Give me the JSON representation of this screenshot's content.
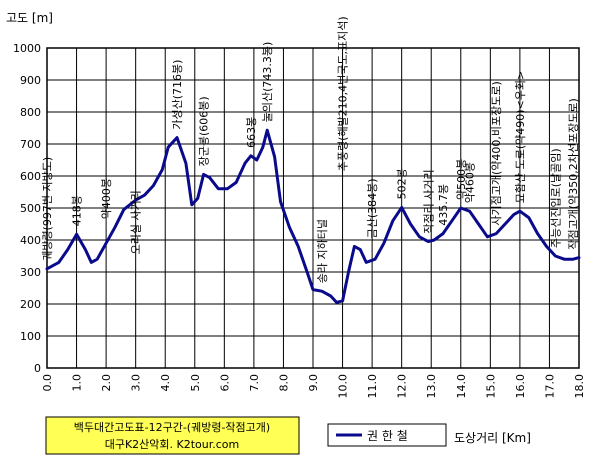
{
  "chart_data": {
    "type": "line",
    "title": "백두대간고도표-12구간-(궤방령-작점고개)",
    "subtitle": "대구K2산악회. K2tour.com",
    "ylabel": "고도 [m]",
    "xlabel": "도상거리 [Km]",
    "xlim": [
      0,
      18
    ],
    "ylim": [
      0,
      1000
    ],
    "x_ticks": [
      0,
      1,
      2,
      3,
      4,
      5,
      6,
      7,
      8,
      9,
      10,
      11,
      12,
      13,
      14,
      15,
      16,
      17,
      18
    ],
    "x_tick_labels": [
      "0.0",
      "1.0",
      "2.0",
      "3.0",
      "4.0",
      "5.0",
      "6.0",
      "7.0",
      "8.0",
      "9.0",
      "10.0",
      "11.0",
      "12.0",
      "13.0",
      "14.0",
      "15.0",
      "16.0",
      "17.0",
      "18.0"
    ],
    "y_ticks": [
      0,
      100,
      200,
      300,
      400,
      500,
      600,
      700,
      800,
      900,
      1000
    ],
    "y_tick_labels": [
      "0",
      "100",
      "200",
      "300",
      "400",
      "500",
      "600",
      "700",
      "800",
      "900",
      "1000"
    ],
    "grid": true,
    "legend_position": "bottom-center",
    "colors": {
      "line": "#0a0a8c",
      "grid": "#000000",
      "caption_bg": "#ffff55"
    },
    "series": [
      {
        "name": "권 한 철",
        "x": [
          0.0,
          0.4,
          0.7,
          1.0,
          1.3,
          1.5,
          1.7,
          2.0,
          2.3,
          2.6,
          3.0,
          3.3,
          3.6,
          3.9,
          4.1,
          4.4,
          4.7,
          4.9,
          5.1,
          5.3,
          5.5,
          5.8,
          6.1,
          6.4,
          6.7,
          6.9,
          7.1,
          7.3,
          7.45,
          7.7,
          7.9,
          8.2,
          8.5,
          8.8,
          9.0,
          9.3,
          9.6,
          9.8,
          10.0,
          10.2,
          10.4,
          10.6,
          10.8,
          11.1,
          11.4,
          11.7,
          12.0,
          12.3,
          12.6,
          12.9,
          13.1,
          13.4,
          13.7,
          14.0,
          14.3,
          14.6,
          14.9,
          15.2,
          15.5,
          15.8,
          16.0,
          16.3,
          16.6,
          16.9,
          17.2,
          17.5,
          17.8,
          18.0
        ],
        "y": [
          310,
          330,
          370,
          418,
          370,
          330,
          340,
          390,
          440,
          495,
          525,
          540,
          570,
          620,
          690,
          720,
          640,
          510,
          530,
          605,
          595,
          560,
          560,
          580,
          640,
          663,
          650,
          690,
          743,
          660,
          520,
          440,
          380,
          300,
          245,
          240,
          225,
          205,
          210,
          300,
          380,
          370,
          330,
          340,
          390,
          460,
          502,
          450,
          410,
          395,
          400,
          420,
          460,
          500,
          490,
          450,
          410,
          420,
          450,
          480,
          490,
          470,
          420,
          380,
          350,
          340,
          340,
          345
        ]
      }
    ],
    "annotations": [
      {
        "x": 0.0,
        "y": 310,
        "text": "궤방령(997번 지방도)"
      },
      {
        "x": 1.0,
        "y": 418,
        "text": "418봉"
      },
      {
        "x": 2.0,
        "y": 440,
        "text": "약400봉"
      },
      {
        "x": 3.0,
        "y": 330,
        "text": "오리실 사거리"
      },
      {
        "x": 4.4,
        "y": 720,
        "text": "가성산(716봉)"
      },
      {
        "x": 5.3,
        "y": 605,
        "text": "장군봉(606봉)"
      },
      {
        "x": 6.9,
        "y": 663,
        "text": "663봉"
      },
      {
        "x": 7.45,
        "y": 743,
        "text": "눌의산(743.3봉)"
      },
      {
        "x": 9.3,
        "y": 240,
        "text": "송라 지하터널"
      },
      {
        "x": 10.0,
        "y": 590,
        "text": "추풍령(해발210,4번국도,표지석)"
      },
      {
        "x": 11.0,
        "y": 380,
        "text": "금산(384봉)"
      },
      {
        "x": 12.0,
        "y": 502,
        "text": "502봉"
      },
      {
        "x": 12.9,
        "y": 395,
        "text": "작점리 사거리"
      },
      {
        "x": 13.4,
        "y": 420,
        "text": "435.7봉"
      },
      {
        "x": 14.0,
        "y": 500,
        "text": "약500봉"
      },
      {
        "x": 14.3,
        "y": 490,
        "text": "약460봉"
      },
      {
        "x": 15.2,
        "y": 420,
        "text": "사기점고개(약400,비포장도로)"
      },
      {
        "x": 16.0,
        "y": 490,
        "text": "묘함산 도로(약490)<우회>"
      },
      {
        "x": 17.2,
        "y": 350,
        "text": "주능선진입로(날골임)"
      },
      {
        "x": 18.0,
        "y": 345,
        "text": "작점고개(약350,2차선포장도로)"
      }
    ]
  }
}
